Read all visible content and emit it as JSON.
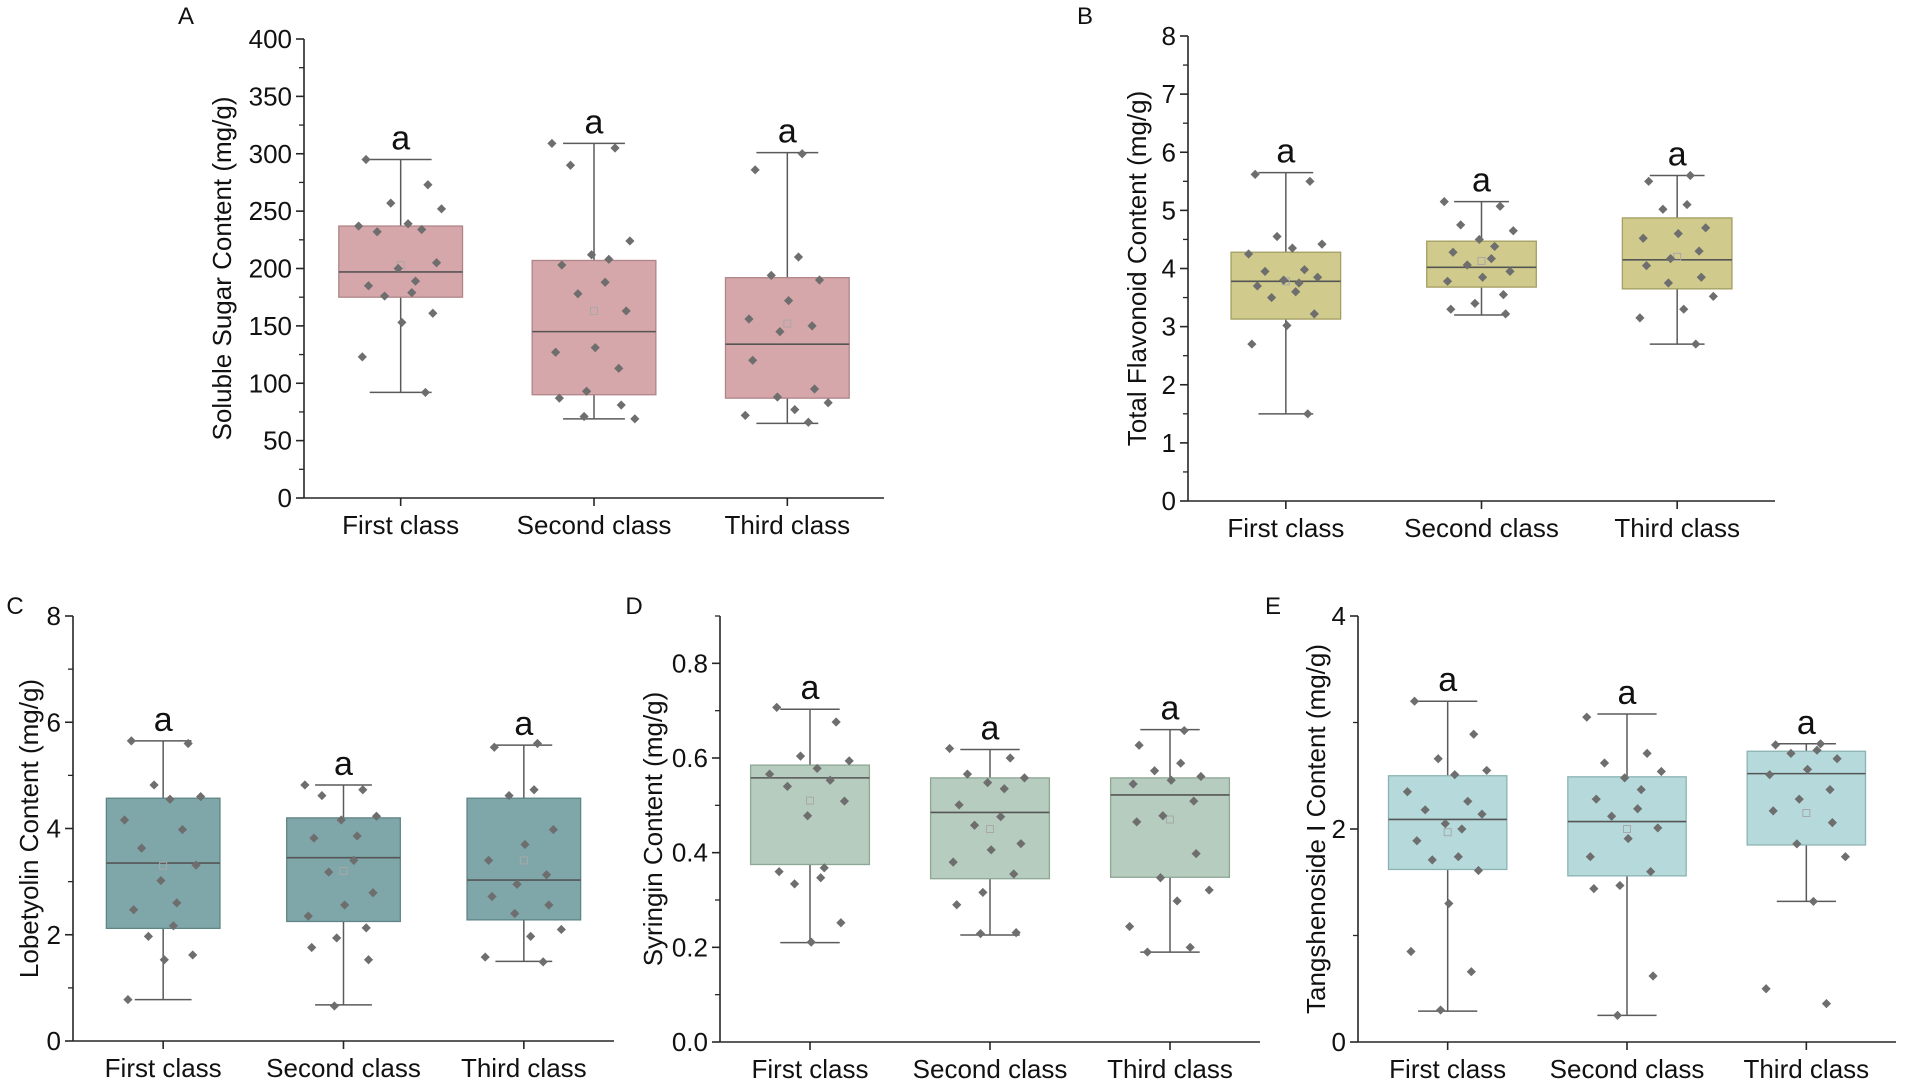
{
  "point_color": "#6e6e6e",
  "chart_data": [
    {
      "panel_label": "A",
      "type": "box",
      "ylabel": "Soluble Sugar Content (mg/g)",
      "categories": [
        "First class",
        "Second class",
        "Third class"
      ],
      "ylim": [
        0,
        400
      ],
      "yticks": [
        0,
        50,
        100,
        150,
        200,
        250,
        300,
        350,
        400
      ],
      "ytick_labels": [
        "0",
        "50",
        "100",
        "150",
        "200",
        "250",
        "300",
        "350",
        "400"
      ],
      "significance": [
        "a",
        "a",
        "a"
      ],
      "colors": {
        "fill": "#d6a7aa",
        "stroke": "#b08588"
      },
      "boxes": [
        {
          "whisker_low": 92,
          "q1": 175,
          "median": 197,
          "q3": 237,
          "whisker_high": 295,
          "mean": 203,
          "points": [
            295,
            273,
            257,
            252,
            239,
            237,
            234,
            232,
            205,
            200,
            189,
            185,
            179,
            176,
            161,
            153,
            123,
            92
          ]
        },
        {
          "whisker_low": 69,
          "q1": 90,
          "median": 145,
          "q3": 207,
          "whisker_high": 309,
          "mean": 163,
          "points": [
            309,
            305,
            290,
            224,
            212,
            208,
            203,
            188,
            178,
            163,
            131,
            127,
            113,
            93,
            87,
            81,
            71,
            69
          ]
        },
        {
          "whisker_low": 65,
          "q1": 87,
          "median": 134,
          "q3": 192,
          "whisker_high": 301,
          "mean": 152,
          "points": [
            300,
            286,
            210,
            194,
            190,
            172,
            156,
            150,
            145,
            120,
            95,
            88,
            83,
            77,
            72,
            66
          ]
        }
      ]
    },
    {
      "panel_label": "B",
      "type": "box",
      "ylabel": "Total Flavonoid Content (mg/g)",
      "categories": [
        "First class",
        "Second class",
        "Third class"
      ],
      "ylim": [
        0,
        8
      ],
      "yticks": [
        0,
        1,
        2,
        3,
        4,
        5,
        6,
        7,
        8
      ],
      "ytick_labels": [
        "0",
        "1",
        "2",
        "3",
        "4",
        "5",
        "6",
        "7",
        "8"
      ],
      "significance": [
        "a",
        "a",
        "a"
      ],
      "colors": {
        "fill": "#d0cb8c",
        "stroke": "#a39e62"
      },
      "boxes": [
        {
          "whisker_low": 1.5,
          "q1": 3.13,
          "median": 3.78,
          "q3": 4.28,
          "whisker_high": 5.65,
          "mean": 3.78,
          "points": [
            5.62,
            5.5,
            4.55,
            4.42,
            4.35,
            4.25,
            3.98,
            3.95,
            3.85,
            3.8,
            3.75,
            3.7,
            3.6,
            3.5,
            3.22,
            3.02,
            2.7,
            1.5
          ]
        },
        {
          "whisker_low": 3.2,
          "q1": 3.68,
          "median": 4.02,
          "q3": 4.47,
          "whisker_high": 5.15,
          "mean": 4.13,
          "points": [
            5.15,
            5.07,
            4.75,
            4.65,
            4.5,
            4.38,
            4.28,
            4.17,
            4.06,
            3.95,
            3.85,
            3.78,
            3.55,
            3.4,
            3.3,
            3.22
          ]
        },
        {
          "whisker_low": 2.7,
          "q1": 3.65,
          "median": 4.15,
          "q3": 4.87,
          "whisker_high": 5.6,
          "mean": 4.2,
          "points": [
            5.6,
            5.5,
            5.1,
            5.02,
            4.7,
            4.6,
            4.52,
            4.3,
            4.17,
            4.05,
            3.85,
            3.75,
            3.52,
            3.3,
            3.15,
            2.7
          ]
        }
      ]
    },
    {
      "panel_label": "C",
      "type": "box",
      "ylabel": "Lobetyolin Content (mg/g)",
      "categories": [
        "First class",
        "Second class",
        "Third class"
      ],
      "ylim": [
        0,
        8
      ],
      "yticks": [
        0,
        2,
        4,
        6,
        8
      ],
      "ytick_labels": [
        "0",
        "2",
        "4",
        "6",
        "8"
      ],
      "significance": [
        "a",
        "a",
        "a"
      ],
      "colors": {
        "fill": "#7fa6a8",
        "stroke": "#5f8587"
      },
      "boxes": [
        {
          "whisker_low": 0.78,
          "q1": 2.12,
          "median": 3.35,
          "q3": 4.57,
          "whisker_high": 5.65,
          "mean": 3.3,
          "points": [
            5.65,
            5.6,
            4.82,
            4.6,
            4.55,
            4.16,
            3.98,
            3.63,
            3.31,
            3.02,
            2.6,
            2.47,
            2.17,
            1.97,
            1.62,
            1.53,
            0.78
          ]
        },
        {
          "whisker_low": 0.68,
          "q1": 2.25,
          "median": 3.45,
          "q3": 4.2,
          "whisker_high": 4.82,
          "mean": 3.2,
          "points": [
            4.82,
            4.73,
            4.62,
            4.23,
            4.16,
            3.86,
            3.82,
            3.4,
            3.18,
            2.79,
            2.56,
            2.35,
            2.13,
            1.94,
            1.76,
            1.53,
            0.66
          ]
        },
        {
          "whisker_low": 1.5,
          "q1": 2.28,
          "median": 3.03,
          "q3": 4.57,
          "whisker_high": 5.57,
          "mean": 3.4,
          "points": [
            5.6,
            5.53,
            4.73,
            4.62,
            3.98,
            3.7,
            3.4,
            3.13,
            2.95,
            2.72,
            2.56,
            2.4,
            2.1,
            1.97,
            1.58,
            1.49
          ]
        }
      ]
    },
    {
      "panel_label": "D",
      "type": "box",
      "ylabel": "Syringin Content (mg/g)",
      "categories": [
        "First class",
        "Second class",
        "Third class"
      ],
      "ylim": [
        0,
        0.9
      ],
      "yticks": [
        0,
        0.2,
        0.4,
        0.6,
        0.8
      ],
      "ytick_labels": [
        "0.0",
        "0.2",
        "0.4",
        "0.6",
        "0.8"
      ],
      "significance": [
        "a",
        "a",
        "a"
      ],
      "colors": {
        "fill": "#b6ccbe",
        "stroke": "#8ea795"
      },
      "boxes": [
        {
          "whisker_low": 0.21,
          "q1": 0.375,
          "median": 0.558,
          "q3": 0.585,
          "whisker_high": 0.703,
          "mean": 0.51,
          "points": [
            0.707,
            0.676,
            0.604,
            0.594,
            0.578,
            0.566,
            0.553,
            0.54,
            0.509,
            0.478,
            0.368,
            0.36,
            0.347,
            0.334,
            0.252,
            0.211
          ]
        },
        {
          "whisker_low": 0.226,
          "q1": 0.345,
          "median": 0.485,
          "q3": 0.558,
          "whisker_high": 0.618,
          "mean": 0.45,
          "points": [
            0.62,
            0.6,
            0.566,
            0.558,
            0.548,
            0.535,
            0.501,
            0.476,
            0.458,
            0.419,
            0.406,
            0.38,
            0.355,
            0.316,
            0.29,
            0.231,
            0.229
          ]
        },
        {
          "whisker_low": 0.19,
          "q1": 0.348,
          "median": 0.522,
          "q3": 0.558,
          "whisker_high": 0.66,
          "mean": 0.47,
          "points": [
            0.658,
            0.627,
            0.589,
            0.573,
            0.561,
            0.553,
            0.545,
            0.509,
            0.478,
            0.465,
            0.398,
            0.347,
            0.321,
            0.298,
            0.244,
            0.2,
            0.19
          ]
        }
      ]
    },
    {
      "panel_label": "E",
      "type": "box",
      "ylabel": "Tangshenoside I Content (mg/g)",
      "categories": [
        "First class",
        "Second class",
        "Third class"
      ],
      "ylim": [
        0,
        4
      ],
      "yticks": [
        0,
        2,
        4
      ],
      "ytick_labels": [
        "0",
        "2",
        "4"
      ],
      "significance": [
        "a",
        "a",
        "a"
      ],
      "colors": {
        "fill": "#b6dadb",
        "stroke": "#8cb3b4"
      },
      "boxes": [
        {
          "whisker_low": 0.29,
          "q1": 1.62,
          "median": 2.09,
          "q3": 2.5,
          "whisker_high": 3.2,
          "mean": 1.97,
          "points": [
            3.2,
            2.89,
            2.66,
            2.55,
            2.51,
            2.35,
            2.26,
            2.18,
            2.14,
            2.05,
            2.0,
            1.89,
            1.74,
            1.71,
            1.61,
            1.3,
            0.85,
            0.66,
            0.3
          ]
        },
        {
          "whisker_low": 0.25,
          "q1": 1.56,
          "median": 2.07,
          "q3": 2.49,
          "whisker_high": 3.08,
          "mean": 2.0,
          "points": [
            3.05,
            2.71,
            2.62,
            2.54,
            2.48,
            2.37,
            2.28,
            2.19,
            2.12,
            2.01,
            1.91,
            1.74,
            1.6,
            1.47,
            1.44,
            0.62,
            0.25
          ]
        },
        {
          "whisker_low": 1.32,
          "q1": 1.85,
          "median": 2.52,
          "q3": 2.73,
          "whisker_high": 2.8,
          "mean": 2.15,
          "points": [
            2.8,
            2.79,
            2.74,
            2.71,
            2.66,
            2.56,
            2.51,
            2.37,
            2.28,
            2.17,
            2.06,
            1.86,
            1.74,
            1.32,
            0.5,
            0.36
          ]
        }
      ]
    }
  ]
}
